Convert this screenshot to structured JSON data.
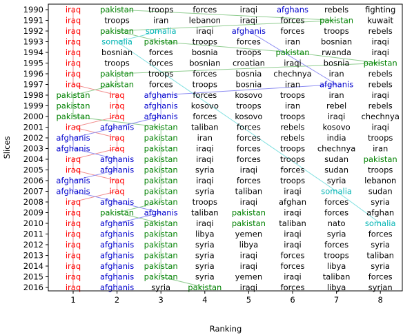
{
  "chart_data": {
    "type": "table",
    "title": "",
    "xlabel": "Ranking",
    "ylabel": "Slices",
    "x_ticks": [
      "1",
      "2",
      "3",
      "4",
      "5",
      "6",
      "7",
      "8"
    ],
    "years": [
      "1990",
      "1991",
      "1992",
      "1993",
      "1994",
      "1995",
      "1996",
      "1997",
      "1998",
      "1999",
      "2000",
      "2001",
      "2002",
      "2003",
      "2004",
      "2005",
      "2006",
      "2007",
      "2008",
      "2009",
      "2010",
      "2011",
      "2012",
      "2013",
      "2014",
      "2015",
      "2016"
    ],
    "rows": [
      [
        "iraq",
        "pakistan",
        "troops",
        "forces",
        "iraqi",
        "afghans",
        "rebels",
        "fighting"
      ],
      [
        "iraq",
        "troops",
        "iran",
        "lebanon",
        "iraqi",
        "forces",
        "pakistan",
        "kuwait"
      ],
      [
        "iraq",
        "pakistan",
        "somalia",
        "iraqi",
        "afghanis",
        "forces",
        "troops",
        "rebels"
      ],
      [
        "iraq",
        "somalia",
        "pakistan",
        "troops",
        "forces",
        "iran",
        "bosnian",
        "iraqi"
      ],
      [
        "iraq",
        "bosnian",
        "forces",
        "bosnia",
        "troops",
        "pakistan",
        "rwanda",
        "iraqi"
      ],
      [
        "iraq",
        "troops",
        "forces",
        "bosnian",
        "croatian",
        "iraqi",
        "bosnia",
        "pakistan"
      ],
      [
        "iraq",
        "pakistan",
        "troops",
        "forces",
        "bosnia",
        "chechnya",
        "iran",
        "rebels"
      ],
      [
        "iraq",
        "pakistan",
        "forces",
        "troops",
        "bosnia",
        "iran",
        "afghanis",
        "rebels"
      ],
      [
        "pakistan",
        "iraq",
        "afghanis",
        "forces",
        "kosovo",
        "troops",
        "iran",
        "iraqi"
      ],
      [
        "pakistan",
        "iraq",
        "afghanis",
        "kosovo",
        "troops",
        "iran",
        "rebel",
        "rebels"
      ],
      [
        "pakistan",
        "iraq",
        "afghanis",
        "forces",
        "kosovo",
        "troops",
        "iraqi",
        "chechnya"
      ],
      [
        "iraq",
        "afghanis",
        "pakistan",
        "taliban",
        "forces",
        "rebels",
        "kosovo",
        "iraqi"
      ],
      [
        "afghanis",
        "iraq",
        "pakistan",
        "iran",
        "forces",
        "rebels",
        "india",
        "troops"
      ],
      [
        "afghanis",
        "iraq",
        "pakistan",
        "iraqi",
        "forces",
        "troops",
        "chechnya",
        "iran"
      ],
      [
        "iraq",
        "afghanis",
        "pakistan",
        "iraqi",
        "forces",
        "troops",
        "sudan",
        "pakistan"
      ],
      [
        "iraq",
        "afghanis",
        "pakistan",
        "syria",
        "iraqi",
        "forces",
        "sudan",
        "troops"
      ],
      [
        "afghanis",
        "iraq",
        "pakistan",
        "iraqi",
        "forces",
        "troops",
        "syria",
        "lebanon"
      ],
      [
        "afghanis",
        "iraq",
        "pakistan",
        "syria",
        "taliban",
        "iraqi",
        "somalia",
        "sudan"
      ],
      [
        "iraq",
        "afghanis",
        "pakistan",
        "troops",
        "iraqi",
        "afghan",
        "forces",
        "syria"
      ],
      [
        "iraq",
        "pakistan",
        "afghanis",
        "taliban",
        "pakistan",
        "iraqi",
        "forces",
        "afghan"
      ],
      [
        "iraq",
        "afghanis",
        "pakistan",
        "iraqi",
        "pakistan",
        "taliban",
        "nato",
        "somalia"
      ],
      [
        "iraq",
        "afghanis",
        "pakistan",
        "libya",
        "yemen",
        "iraqi",
        "syria",
        "forces"
      ],
      [
        "iraq",
        "afghanis",
        "pakistan",
        "syria",
        "libya",
        "iraqi",
        "forces",
        "syria"
      ],
      [
        "iraq",
        "afghanis",
        "pakistan",
        "syria",
        "iraqi",
        "forces",
        "troops",
        "taliban"
      ],
      [
        "iraq",
        "afghanis",
        "pakistan",
        "syria",
        "iraqi",
        "forces",
        "libya",
        "syria"
      ],
      [
        "iraq",
        "afghanis",
        "pakistan",
        "syria",
        "yemen",
        "iraqi",
        "taliban",
        "forces"
      ],
      [
        "iraq",
        "afghanis",
        "syria",
        "pakistan",
        "iraqi",
        "forces",
        "libya",
        "syrian"
      ]
    ],
    "tracked_terms": [
      {
        "name": "iraq",
        "color": "#ff0000",
        "line_color": "#f28c8c"
      },
      {
        "name": "pakistan",
        "color": "#008000",
        "line_color": "#8fcc8f"
      },
      {
        "name": "afghanis",
        "color": "#0000cc",
        "line_color": "#8c8cf2"
      },
      {
        "name": "afghans",
        "color": "#0000cc",
        "line_color": "#8c8cf2"
      },
      {
        "name": "somalia",
        "color": "#00b3b3",
        "line_color": "#80e0e0"
      }
    ],
    "default_color": "#000000",
    "xlim": [
      0.5,
      8.5
    ],
    "grid": false,
    "legend": "none"
  }
}
